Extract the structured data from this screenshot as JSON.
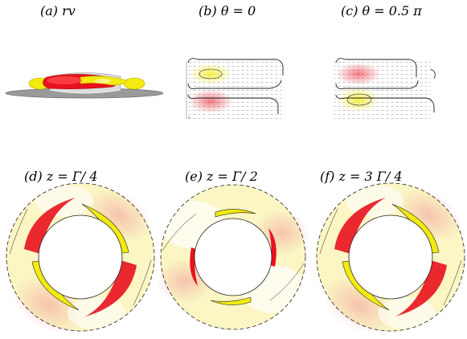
{
  "figure": {
    "panels": [
      {
        "id": "a",
        "label": "(a)   rv"
      },
      {
        "id": "b",
        "label": "(b)   θ = 0"
      },
      {
        "id": "c",
        "label": "(c)   θ = 0.5 π"
      },
      {
        "id": "d",
        "label": "(d)   z =  Γ/ 4"
      },
      {
        "id": "e",
        "label": "(e)   z =  Γ/ 2"
      },
      {
        "id": "f",
        "label": "(f)   z =  3 Γ/ 4"
      }
    ]
  },
  "colors": {
    "positive": "#e8121e",
    "negative": "#f2ea10",
    "light_positive": "#f7c6c3",
    "light_negative": "#fbf6c4",
    "disk": "#9a9a9a"
  }
}
